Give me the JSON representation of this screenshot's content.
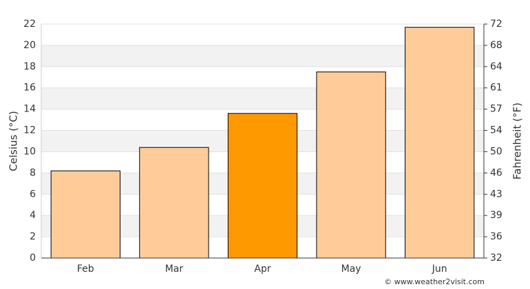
{
  "chart_data": {
    "type": "bar",
    "categories": [
      "Feb",
      "Mar",
      "Apr",
      "May",
      "Jun"
    ],
    "values": [
      8.2,
      10.4,
      13.6,
      17.5,
      21.7
    ],
    "colors": [
      "#ffcc99",
      "#ffcc99",
      "#ff9900",
      "#ffcc99",
      "#ffcc99"
    ],
    "ylabel": "Celsius (°C)",
    "y2label": "Fahrenheit (°F)",
    "ylim": [
      0,
      22
    ],
    "yticks": [
      0,
      2,
      4,
      6,
      8,
      10,
      12,
      14,
      16,
      18,
      20,
      22
    ],
    "y2lim": [
      32,
      71.6
    ],
    "y2ticks": [
      32,
      {
        "value": 35.6,
        "label": "36"
      },
      {
        "value": 39.2,
        "label": "39"
      },
      {
        "value": 42.8,
        "label": "43"
      },
      {
        "value": 46.4,
        "label": "46"
      },
      50,
      {
        "value": 53.6,
        "label": "54"
      },
      {
        "value": 57.2,
        "label": "57"
      },
      {
        "value": 60.8,
        "label": "61"
      },
      {
        "value": 64.4,
        "label": "64"
      },
      68,
      {
        "value": 71.6,
        "label": "72"
      }
    ],
    "grid": true,
    "credit": "© www.weather2visit.com"
  }
}
